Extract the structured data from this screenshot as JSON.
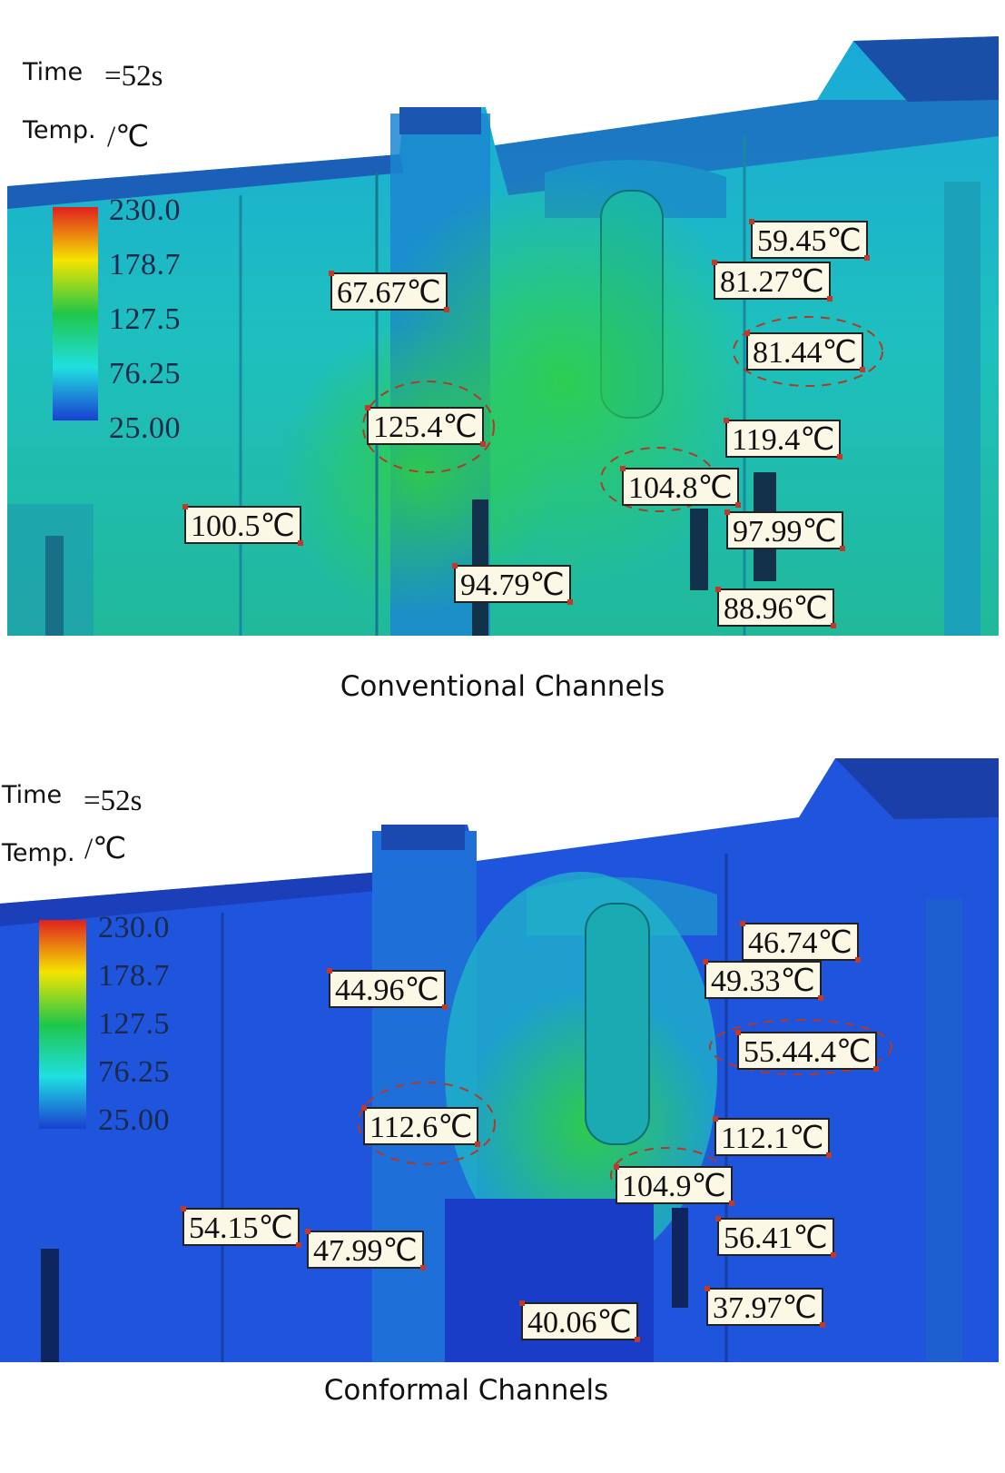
{
  "panels": [
    {
      "meta": {
        "time_label": "Time",
        "time_value": "=52s",
        "temp_label": "Temp.",
        "temp_unit": "/℃"
      },
      "scale": [
        "230.0",
        "178.7",
        "127.5",
        "76.25",
        "25.00"
      ],
      "labels": [
        "59.45℃",
        "81.27℃",
        "67.67℃",
        "81.44℃",
        "125.4℃",
        "119.4℃",
        "104.8℃",
        "100.5℃",
        "97.99℃",
        "94.79℃",
        "88.96℃"
      ],
      "caption": "Conventional Channels"
    },
    {
      "meta": {
        "time_label": "Time",
        "time_value": "=52s",
        "temp_label": "Temp.",
        "temp_unit": "/℃"
      },
      "scale": [
        "230.0",
        "178.7",
        "127.5",
        "76.25",
        "25.00"
      ],
      "labels": [
        "46.74℃",
        "49.33℃",
        "44.96℃",
        "55.44.4℃",
        "112.6℃",
        "112.1℃",
        "104.9℃",
        "54.15℃",
        "47.99℃",
        "56.41℃",
        "40.06℃",
        "37.97℃"
      ],
      "caption": "Conformal Channels"
    }
  ],
  "colors": {
    "hot": "#e02020",
    "warm": "#f4e400",
    "mid": "#1fc64a",
    "cool": "#1fe0e0",
    "cold": "#1a3fd0"
  }
}
